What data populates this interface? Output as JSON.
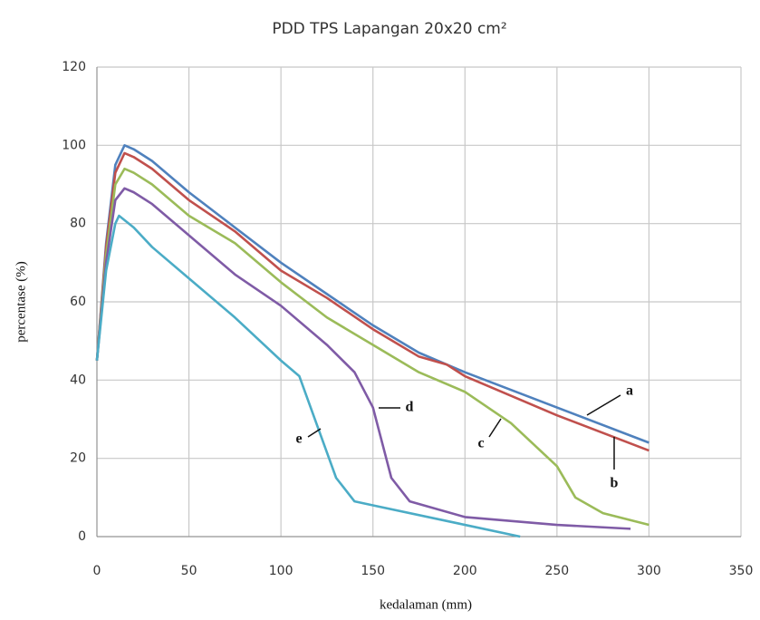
{
  "chart_data": {
    "type": "line",
    "title": "PDD TPS Lapangan 20x20 cm²",
    "x_label": "kedalaman (mm)",
    "y_label": "percentase (%)",
    "xlim": [
      0,
      350
    ],
    "xticks": [
      0,
      50,
      100,
      150,
      200,
      250,
      300,
      350
    ],
    "ylim": [
      0,
      120
    ],
    "yticks": [
      0,
      20,
      40,
      60,
      80,
      100,
      120
    ],
    "grid": true,
    "series": [
      {
        "name": "a",
        "color": "#4f81bd",
        "x": [
          0,
          5,
          10,
          15,
          20,
          30,
          50,
          75,
          100,
          125,
          150,
          175,
          200,
          250,
          300
        ],
        "values": [
          45,
          75,
          95,
          100,
          99,
          96,
          88,
          79,
          70,
          62,
          54,
          47,
          42,
          33,
          24
        ]
      },
      {
        "name": "b",
        "color": "#c0504d",
        "x": [
          0,
          5,
          10,
          15,
          20,
          30,
          50,
          75,
          100,
          125,
          150,
          175,
          190,
          200,
          250,
          300
        ],
        "values": [
          45,
          74,
          93,
          98,
          97,
          94,
          86,
          78,
          68,
          61,
          53,
          46,
          44,
          41,
          31,
          22
        ]
      },
      {
        "name": "c",
        "color": "#9bbb59",
        "x": [
          0,
          5,
          10,
          15,
          20,
          30,
          50,
          75,
          100,
          125,
          150,
          175,
          200,
          225,
          250,
          260,
          275,
          300
        ],
        "values": [
          45,
          72,
          90,
          94,
          93,
          90,
          82,
          75,
          65,
          56,
          49,
          42,
          37,
          29,
          18,
          10,
          6,
          3
        ]
      },
      {
        "name": "d",
        "color": "#7f5ba6",
        "x": [
          0,
          5,
          10,
          15,
          20,
          30,
          50,
          75,
          100,
          125,
          140,
          150,
          160,
          170,
          200,
          250,
          290
        ],
        "values": [
          45,
          70,
          86,
          89,
          88,
          85,
          77,
          67,
          59,
          49,
          42,
          33,
          15,
          9,
          5,
          3,
          2
        ]
      },
      {
        "name": "e",
        "color": "#4bacc6",
        "x": [
          0,
          5,
          10,
          12,
          20,
          30,
          50,
          75,
          100,
          110,
          120,
          130,
          140,
          150,
          200,
          230
        ],
        "values": [
          45,
          68,
          80,
          82,
          79,
          74,
          66,
          56,
          45,
          41,
          28,
          15,
          9,
          8,
          3,
          0
        ]
      }
    ]
  }
}
